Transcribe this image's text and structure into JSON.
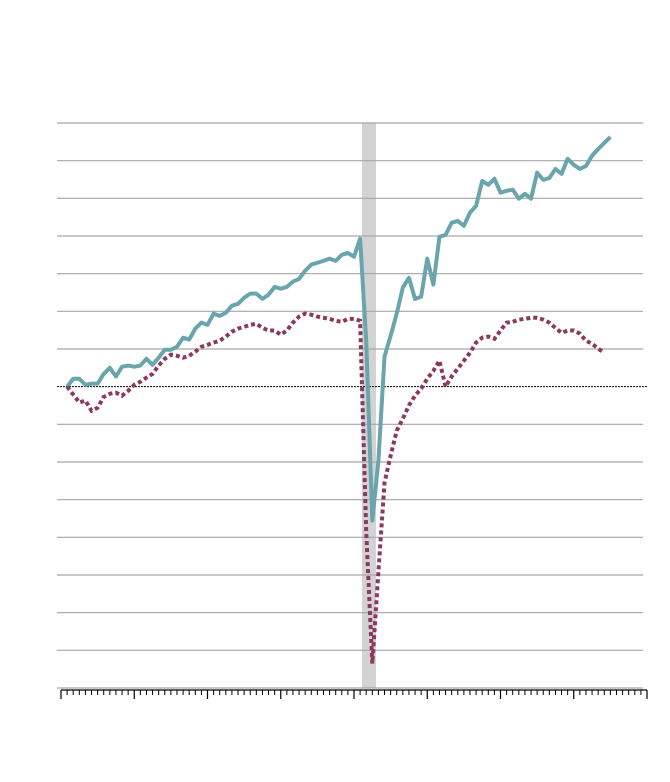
{
  "chart_data": {
    "type": "line",
    "xlim": [
      0,
      96
    ],
    "xticks": [
      0,
      12,
      24,
      36,
      48,
      60,
      72,
      84,
      96
    ],
    "xminor_step": 1,
    "ylim": [
      -8,
      7
    ],
    "yticks": [
      -8,
      -7,
      -6,
      -5,
      -4,
      -3,
      -2,
      -1,
      0,
      1,
      2,
      3,
      4,
      5,
      6,
      7
    ],
    "grid": true,
    "zero_line": true,
    "highlight": [
      49.3,
      51.6
    ],
    "highlight_color": "#d3d3d3",
    "series": [
      {
        "color": "#6aa5ad",
        "style": "solid",
        "x": [
          1,
          2,
          3,
          4,
          5,
          6,
          7,
          8,
          9,
          10,
          11,
          12,
          13,
          14,
          15,
          16,
          17,
          18,
          19,
          20,
          21,
          22,
          23,
          24,
          25,
          26,
          27,
          28,
          29,
          30,
          31,
          32,
          33,
          34,
          35,
          36,
          37,
          38,
          39,
          40,
          41,
          42,
          43,
          44,
          45,
          46,
          47,
          48,
          49,
          50,
          51,
          52,
          53,
          54,
          55,
          56,
          57,
          58,
          59,
          60,
          61,
          62,
          63,
          64,
          65,
          66,
          67,
          68,
          69,
          70,
          71,
          72,
          73,
          74,
          75,
          76,
          77,
          78,
          79,
          80,
          81,
          82,
          83,
          84,
          85,
          86,
          87,
          88,
          89,
          90
        ],
        "values": [
          0,
          0.21,
          0.21,
          0.05,
          0.08,
          0.08,
          0.34,
          0.5,
          0.27,
          0.53,
          0.56,
          0.53,
          0.56,
          0.74,
          0.58,
          0.77,
          0.98,
          0.98,
          1.06,
          1.3,
          1.25,
          1.54,
          1.7,
          1.64,
          1.94,
          1.88,
          1.96,
          2.15,
          2.2,
          2.36,
          2.47,
          2.47,
          2.33,
          2.44,
          2.65,
          2.6,
          2.65,
          2.79,
          2.86,
          3.08,
          3.24,
          3.29,
          3.34,
          3.4,
          3.34,
          3.5,
          3.55,
          3.45,
          3.93,
          1.22,
          -3.55,
          -1.96,
          0.8,
          1.35,
          1.94,
          2.63,
          2.89,
          2.33,
          2.39,
          3.4,
          2.71,
          3.98,
          4.03,
          4.35,
          4.4,
          4.27,
          4.62,
          4.8,
          5.46,
          5.36,
          5.52,
          5.15,
          5.2,
          5.23,
          4.99,
          5.12,
          4.99,
          5.68,
          5.49,
          5.54,
          5.78,
          5.65,
          6.05,
          5.89,
          5.78,
          5.86,
          6.13,
          6.31,
          6.47,
          6.63
        ]
      },
      {
        "color": "#8b3a5e",
        "style": "dotted",
        "x": [
          1,
          2,
          3,
          4,
          5,
          6,
          7,
          8,
          9,
          10,
          11,
          12,
          13,
          14,
          15,
          16,
          17,
          18,
          19,
          20,
          21,
          22,
          23,
          24,
          25,
          26,
          27,
          28,
          29,
          30,
          31,
          32,
          33,
          34,
          35,
          36,
          37,
          38,
          39,
          40,
          41,
          42,
          43,
          44,
          45,
          46,
          47,
          48,
          49,
          50,
          51,
          52,
          53,
          54,
          55,
          56,
          57,
          58,
          59,
          60,
          61,
          62,
          63,
          64,
          65,
          66,
          67,
          68,
          69,
          70,
          71,
          72,
          73,
          74,
          75,
          76,
          77,
          78,
          79,
          80,
          81,
          82,
          83,
          84,
          85,
          86,
          87,
          88,
          89
        ],
        "values": [
          0,
          -0.21,
          -0.42,
          -0.37,
          -0.64,
          -0.56,
          -0.27,
          -0.19,
          -0.16,
          -0.24,
          -0.11,
          0.05,
          0.13,
          0.24,
          0.34,
          0.56,
          0.74,
          0.85,
          0.82,
          0.77,
          0.82,
          0.93,
          1.06,
          1.11,
          1.17,
          1.22,
          1.33,
          1.46,
          1.54,
          1.59,
          1.64,
          1.67,
          1.56,
          1.49,
          1.49,
          1.38,
          1.49,
          1.7,
          1.86,
          1.94,
          1.91,
          1.86,
          1.83,
          1.8,
          1.75,
          1.72,
          1.8,
          1.8,
          1.75,
          -3.85,
          -7.35,
          -4.91,
          -2.55,
          -1.83,
          -1.17,
          -0.85,
          -0.5,
          -0.24,
          -0.05,
          0.21,
          0.42,
          0.69,
          0,
          0.27,
          0.48,
          0.69,
          0.9,
          1.17,
          1.3,
          1.33,
          1.27,
          1.49,
          1.7,
          1.72,
          1.78,
          1.8,
          1.83,
          1.83,
          1.78,
          1.7,
          1.56,
          1.43,
          1.49,
          1.49,
          1.41,
          1.22,
          1.14,
          1.01,
          0.9
        ]
      }
    ]
  }
}
